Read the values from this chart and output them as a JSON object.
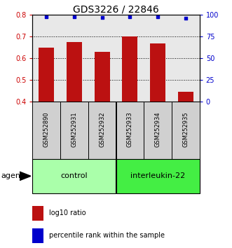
{
  "title": "GDS3226 / 22846",
  "samples": [
    "GSM252890",
    "GSM252931",
    "GSM252932",
    "GSM252933",
    "GSM252934",
    "GSM252935"
  ],
  "log10_values": [
    0.648,
    0.675,
    0.63,
    0.7,
    0.667,
    0.447
  ],
  "percentile_values": [
    98,
    98,
    97,
    98,
    98,
    96
  ],
  "bar_color": "#bb1111",
  "dot_color": "#0000cc",
  "ylim_left": [
    0.4,
    0.8
  ],
  "ylim_right": [
    0,
    100
  ],
  "yticks_left": [
    0.4,
    0.5,
    0.6,
    0.7,
    0.8
  ],
  "yticks_right": [
    0,
    25,
    50,
    75,
    100
  ],
  "groups": [
    {
      "label": "control",
      "indices": [
        0,
        1,
        2
      ],
      "color": "#aaffaa"
    },
    {
      "label": "interleukin-22",
      "indices": [
        3,
        4,
        5
      ],
      "color": "#44ee44"
    }
  ],
  "agent_label": "agent",
  "legend_bar_label": "log10 ratio",
  "legend_dot_label": "percentile rank within the sample",
  "bar_width": 0.55,
  "background_color": "#ffffff",
  "plot_bg_color": "#e8e8e8",
  "sample_box_color": "#d0d0d0",
  "tick_label_color_left": "#cc0000",
  "tick_label_color_right": "#0000cc",
  "title_fontsize": 10,
  "axis_fontsize": 7,
  "sample_fontsize": 6,
  "group_fontsize": 8,
  "legend_fontsize": 7,
  "agent_fontsize": 8
}
